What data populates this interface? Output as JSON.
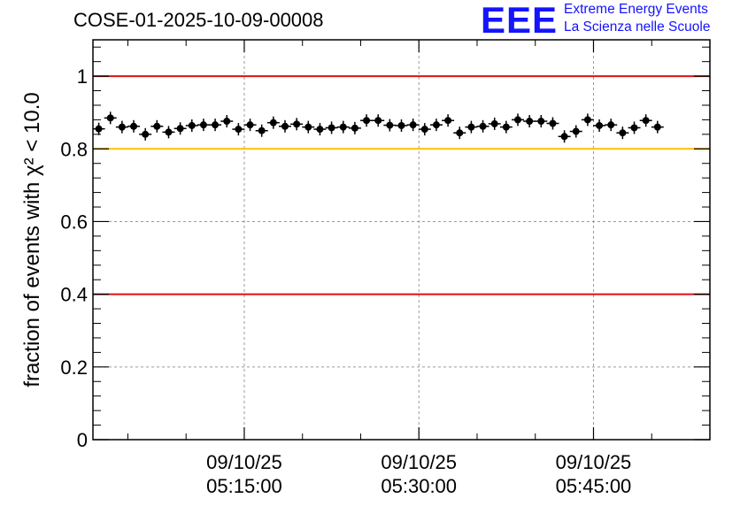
{
  "header": {
    "title": "COSE-01-2025-10-09-00008"
  },
  "logo": {
    "mark": "EEE",
    "line1": "Extreme Energy Events",
    "line2": "La Scienza nelle Scuole",
    "color": "#1414ff"
  },
  "chart_data": {
    "type": "scatter",
    "ylabel": "fraction of events with χ² < 10.0",
    "ylim": [
      0,
      1.1
    ],
    "yticks": [
      0,
      0.2,
      0.4,
      0.6,
      0.8,
      1
    ],
    "ytick_labels": [
      "0",
      "0.2",
      "0.4",
      "0.6",
      "0.8",
      "1"
    ],
    "xlim_minutes": [
      "05:02:00",
      "05:55:00"
    ],
    "xticks": [
      {
        "date": "09/10/25",
        "time": "05:15:00"
      },
      {
        "date": "09/10/25",
        "time": "05:30:00"
      },
      {
        "date": "09/10/25",
        "time": "05:45:00"
      }
    ],
    "grid": true,
    "reference_lines": [
      {
        "y": 1.0,
        "color": "#e01010"
      },
      {
        "y": 0.8,
        "color": "#ffc000"
      },
      {
        "y": 0.4,
        "color": "#e01010"
      }
    ],
    "marker_color": "#000000",
    "series": [
      {
        "x_start": "05:02:30",
        "x_step_seconds": 60,
        "y": [
          0.855,
          0.885,
          0.86,
          0.862,
          0.84,
          0.862,
          0.846,
          0.856,
          0.864,
          0.866,
          0.866,
          0.876,
          0.854,
          0.866,
          0.85,
          0.872,
          0.862,
          0.868,
          0.86,
          0.854,
          0.858,
          0.86,
          0.857,
          0.878,
          0.878,
          0.865,
          0.864,
          0.866,
          0.854,
          0.866,
          0.878,
          0.844,
          0.86,
          0.862,
          0.869,
          0.86,
          0.88,
          0.876,
          0.876,
          0.87,
          0.834,
          0.848,
          0.88,
          0.864,
          0.866,
          0.844,
          0.858,
          0.878,
          0.86
        ]
      }
    ]
  }
}
